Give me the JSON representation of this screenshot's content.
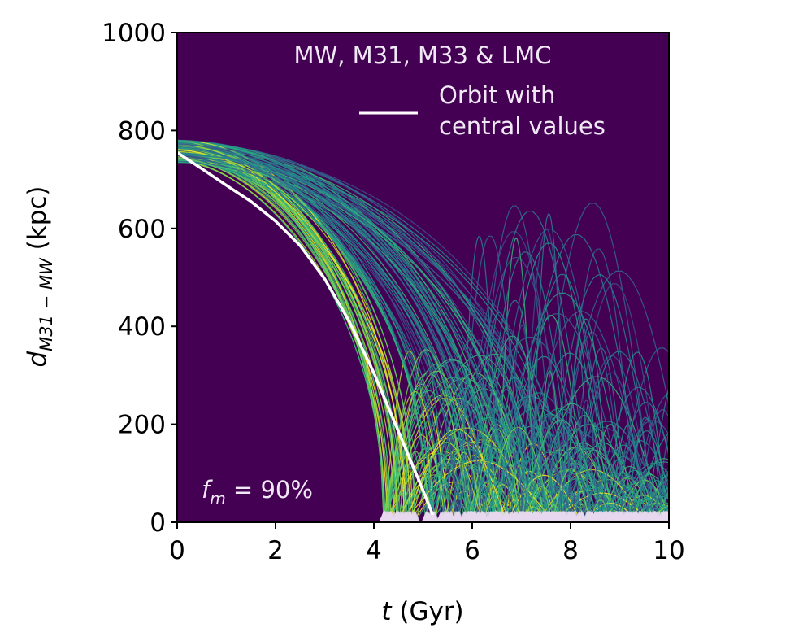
{
  "chart_data": {
    "type": "line",
    "title": "MW, M31, M33 & LMC",
    "xlabel": "t (Gyr)",
    "xlabel_var": "t",
    "xlabel_unit": " (Gyr)",
    "ylabel_var": "d",
    "ylabel_sub": "M31 − MW",
    "ylabel_unit": " (kpc)",
    "xlim": [
      0,
      10
    ],
    "ylim": [
      0,
      1000
    ],
    "xticks": [
      "0",
      "2",
      "4",
      "6",
      "8",
      "10"
    ],
    "yticks": [
      "0",
      "200",
      "400",
      "600",
      "800",
      "1000"
    ],
    "grid": false,
    "background_color": "#440154",
    "colormap": "viridis",
    "legend": {
      "position": "top-right",
      "line1": "Orbit with",
      "line2": "central values",
      "color": "#ffffff"
    },
    "annotation": {
      "var": "f",
      "sub": "m",
      "text": " = 90%",
      "position": "bottom-left"
    },
    "central_orbit": {
      "name": "Orbit with central values",
      "x": [
        0,
        0.5,
        1,
        1.5,
        2,
        2.5,
        3,
        3.5,
        4,
        4.5,
        5,
        5.2
      ],
      "y": [
        755,
        722,
        688,
        655,
        615,
        565,
        497,
        410,
        305,
        185,
        65,
        15
      ]
    },
    "ensemble": {
      "initial_distance_range": [
        735,
        780
      ],
      "first_pericenter_range": [
        4.2,
        8.0
      ]
    }
  }
}
